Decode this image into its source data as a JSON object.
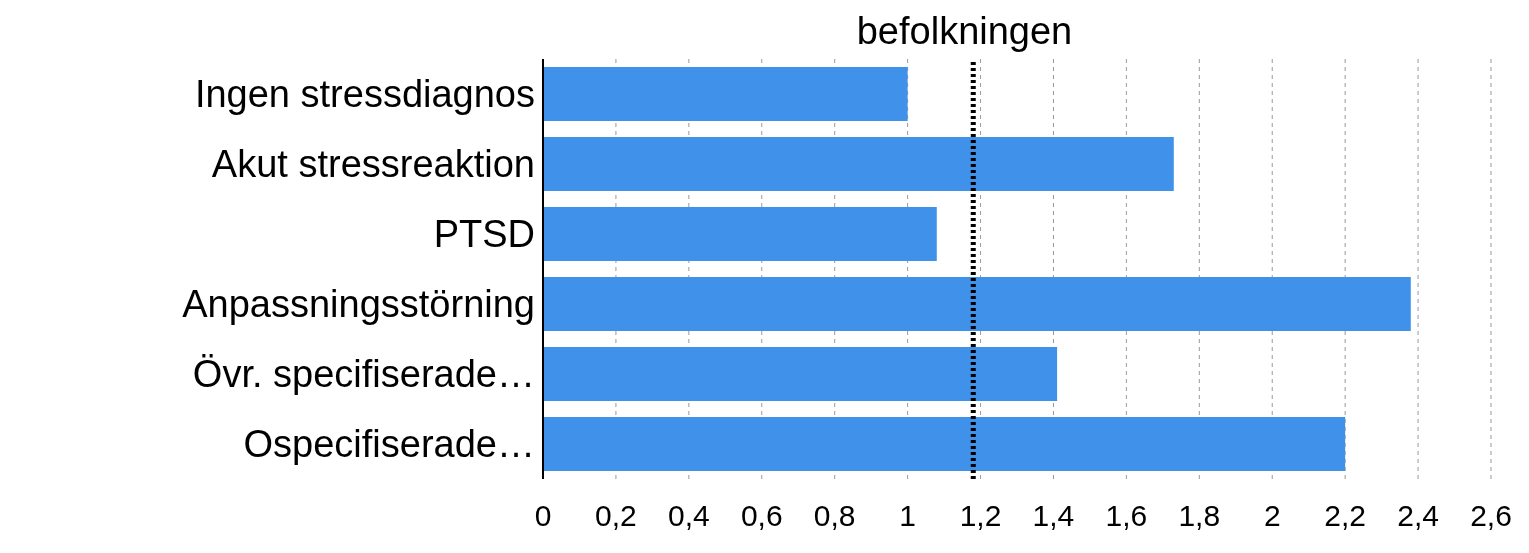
{
  "chart_data": {
    "type": "bar",
    "orientation": "horizontal",
    "title": "befolkningen",
    "categories": [
      "Ingen stressdiagnos",
      "Akut stressreaktion",
      "PTSD",
      "Anpassningsstörning",
      "Övr. specifiserade…",
      "Ospecifiserade…"
    ],
    "values": [
      1.0,
      1.73,
      1.08,
      2.38,
      1.41,
      2.2
    ],
    "color": "#3f91e9",
    "xlim": [
      0,
      2.6
    ],
    "xticks": [
      0,
      {
        "value": 0.2,
        "label": "0,2"
      },
      {
        "value": 0.4,
        "label": "0,4"
      },
      {
        "value": 0.6,
        "label": "0,6"
      },
      {
        "value": 0.8,
        "label": "0,8"
      },
      1,
      {
        "value": 1.2,
        "label": "1,2"
      },
      {
        "value": 1.4,
        "label": "1,4"
      },
      {
        "value": 1.6,
        "label": "1,6"
      },
      {
        "value": 1.8,
        "label": "1,8"
      },
      2,
      {
        "value": 2.2,
        "label": "2,2"
      },
      {
        "value": 2.4,
        "label": "2,4"
      },
      {
        "value": 2.6,
        "label": "2,6"
      }
    ],
    "grid": "x",
    "ref_lines": [
      {
        "axis": "x",
        "value": 1.18,
        "color": "#000000",
        "line_style": "dotted"
      }
    ]
  }
}
